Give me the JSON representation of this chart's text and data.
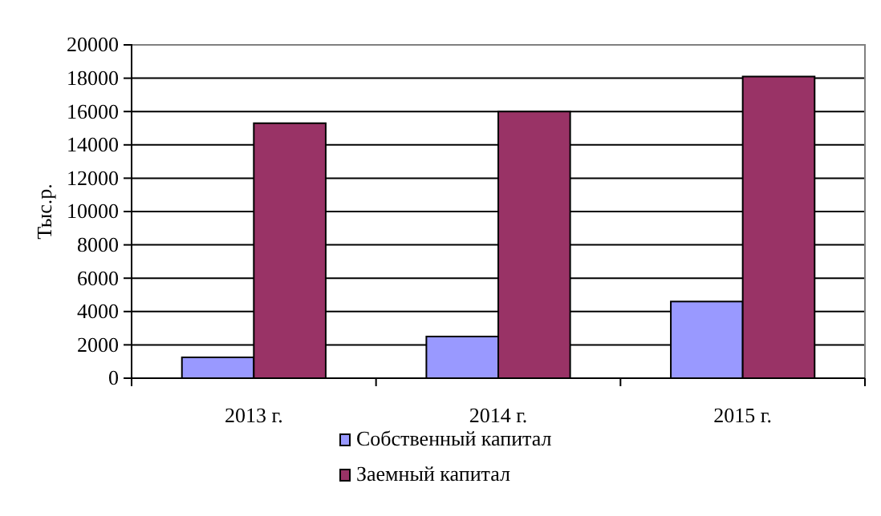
{
  "chart_data": {
    "type": "bar",
    "ylabel": "Тыс.р.",
    "categories": [
      "2013 г.",
      "2014 г.",
      "2015 г."
    ],
    "series": [
      {
        "name": "Собственный капитал",
        "color": "#9999ff",
        "values": [
          1250,
          2500,
          4600
        ]
      },
      {
        "name": "Заемный капитал",
        "color": "#993366",
        "values": [
          15300,
          16000,
          18100
        ]
      }
    ],
    "ylim": [
      0,
      20000
    ],
    "yticks": [
      0,
      2000,
      4000,
      6000,
      8000,
      10000,
      12000,
      14000,
      16000,
      18000,
      20000
    ],
    "grid": "y",
    "legend": "bottom"
  }
}
